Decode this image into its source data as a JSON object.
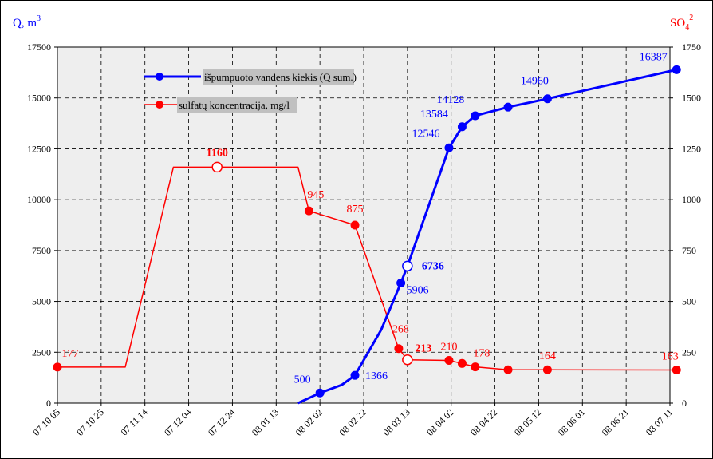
{
  "chart_data": {
    "type": "line",
    "left_axis_title": "Q, m",
    "left_axis_title_sup": "3",
    "right_axis_title": "SO",
    "right_axis_title_sub": "4",
    "right_axis_title_sup": "2-",
    "left_ylim": [
      0,
      17500
    ],
    "right_ylim": [
      0,
      1750
    ],
    "left_ticks": [
      "0",
      "2500",
      "5000",
      "7500",
      "10000",
      "12500",
      "15000",
      "17500"
    ],
    "right_ticks": [
      "0",
      "250",
      "500",
      "750",
      "1000",
      "1250",
      "1500",
      "1750"
    ],
    "x_ticks": [
      "07 10 05",
      "07 10 25",
      "07 11 14",
      "07 12 04",
      "07 12 24",
      "08 01 13",
      "08 02 02",
      "08 02 22",
      "08 03 13",
      "08 04 02",
      "08 04 22",
      "08 05 12",
      "08 06 01",
      "08 06 21",
      "08 07 11"
    ],
    "grid": true,
    "colors": {
      "q": "#0000ff",
      "so4": "#ff0000",
      "plot_bg": "#eeeeee"
    },
    "legend": {
      "placement": "top-left",
      "items": [
        {
          "label": "išpumpuoto vandens kiekis (Q sum.)",
          "color": "#0000ff"
        },
        {
          "label": "sulfatų koncentracija, mg/l",
          "color": "#ff0000"
        }
      ]
    },
    "series": [
      {
        "name": "išpumpuoto vandens kiekis (Q sum.)",
        "axis": "left",
        "points": [
          {
            "x": "08 02 02",
            "y": 500,
            "label": "500",
            "marker": true
          },
          {
            "x": "08 02 18",
            "y": 1366,
            "label": "1366",
            "marker": true
          },
          {
            "x": "08 03 10",
            "y": 5906,
            "label": "5906",
            "marker": true
          },
          {
            "x": "08 03 13",
            "y": 6736,
            "label": "6736",
            "marker": "open",
            "bold": true
          },
          {
            "x": "08 04 01",
            "y": 12546,
            "label": "12546",
            "marker": true
          },
          {
            "x": "08 04 07",
            "y": 13584,
            "label": "13584",
            "marker": true
          },
          {
            "x": "08 04 13",
            "y": 14128,
            "label": "14128",
            "marker": true
          },
          {
            "x": "08 04 28",
            "y": 14550,
            "label": "",
            "marker": true
          },
          {
            "x": "08 05 16",
            "y": 14960,
            "label": "14960",
            "marker": true
          },
          {
            "x": "08 07 14",
            "y": 16387,
            "label": "16387",
            "marker": true
          }
        ],
        "curve": [
          [
            "08 01 23",
            0
          ],
          [
            "08 02 02",
            500
          ],
          [
            "08 02 12",
            900
          ],
          [
            "08 02 18",
            1366
          ],
          [
            "08 03 01",
            3600
          ],
          [
            "08 03 10",
            5906
          ],
          [
            "08 03 13",
            6736
          ],
          [
            "08 04 01",
            12546
          ],
          [
            "08 04 07",
            13584
          ],
          [
            "08 04 13",
            14128
          ],
          [
            "08 04 28",
            14550
          ],
          [
            "08 05 16",
            14960
          ],
          [
            "08 07 14",
            16387
          ]
        ]
      },
      {
        "name": "sulfatų koncentracija, mg/l",
        "axis": "right",
        "points": [
          {
            "x": "07 10 05",
            "y": 177,
            "label": "177",
            "marker": true
          },
          {
            "x": "07 12 17",
            "y": 1160,
            "label": "1160",
            "marker": "open",
            "bold": true
          },
          {
            "x": "08 01 28",
            "y": 945,
            "label": "945",
            "marker": true
          },
          {
            "x": "08 02 18",
            "y": 875,
            "label": "875",
            "marker": true
          },
          {
            "x": "08 03 09",
            "y": 268,
            "label": "268",
            "marker": true
          },
          {
            "x": "08 03 13",
            "y": 213,
            "label": "213",
            "marker": "open",
            "bold": true
          },
          {
            "x": "08 04 01",
            "y": 210,
            "label": "210",
            "marker": true
          },
          {
            "x": "08 04 07",
            "y": 195,
            "label": "",
            "marker": true
          },
          {
            "x": "08 04 13",
            "y": 178,
            "label": "178",
            "marker": true
          },
          {
            "x": "08 04 28",
            "y": 164,
            "label": "",
            "marker": true
          },
          {
            "x": "08 05 16",
            "y": 164,
            "label": "164",
            "marker": true
          },
          {
            "x": "08 07 14",
            "y": 163,
            "label": "163",
            "marker": true
          }
        ],
        "curve": [
          [
            "07 10 05",
            177
          ],
          [
            "07 11 05",
            177
          ],
          [
            "07 11 27",
            1160
          ],
          [
            "07 12 17",
            1160
          ],
          [
            "08 01 23",
            1160
          ],
          [
            "08 01 28",
            945
          ],
          [
            "08 02 18",
            875
          ],
          [
            "08 03 09",
            268
          ],
          [
            "08 03 13",
            213
          ],
          [
            "08 04 01",
            210
          ],
          [
            "08 04 07",
            195
          ],
          [
            "08 04 13",
            178
          ],
          [
            "08 04 28",
            164
          ],
          [
            "08 05 16",
            164
          ],
          [
            "08 07 14",
            163
          ]
        ]
      }
    ]
  }
}
